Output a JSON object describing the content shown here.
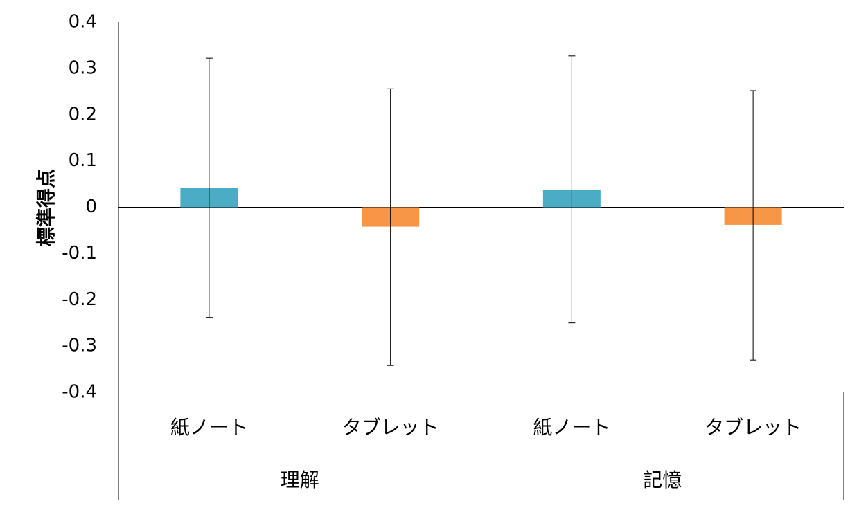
{
  "chart_data": {
    "type": "bar",
    "ylabel": "標準得点",
    "ylim": [
      -0.4,
      0.4
    ],
    "yticks": [
      "0.4",
      "0.3",
      "0.2",
      "0.1",
      "0",
      "-0.1",
      "-0.2",
      "-0.3",
      "-0.4"
    ],
    "groups": [
      {
        "label": "理解",
        "bars": [
          {
            "label": "紙ノート",
            "value": 0.042,
            "err_low": -0.238,
            "err_high": 0.322,
            "color": "#4BACC6"
          },
          {
            "label": "タブレット",
            "value": -0.042,
            "err_low": -0.342,
            "err_high": 0.256,
            "color": "#F79646"
          }
        ]
      },
      {
        "label": "記憶",
        "bars": [
          {
            "label": "紙ノート",
            "value": 0.038,
            "err_low": -0.25,
            "err_high": 0.327,
            "color": "#4BACC6"
          },
          {
            "label": "タブレット",
            "value": -0.038,
            "err_low": -0.33,
            "err_high": 0.252,
            "color": "#F79646"
          }
        ]
      }
    ],
    "grid": false,
    "legend": "none"
  }
}
